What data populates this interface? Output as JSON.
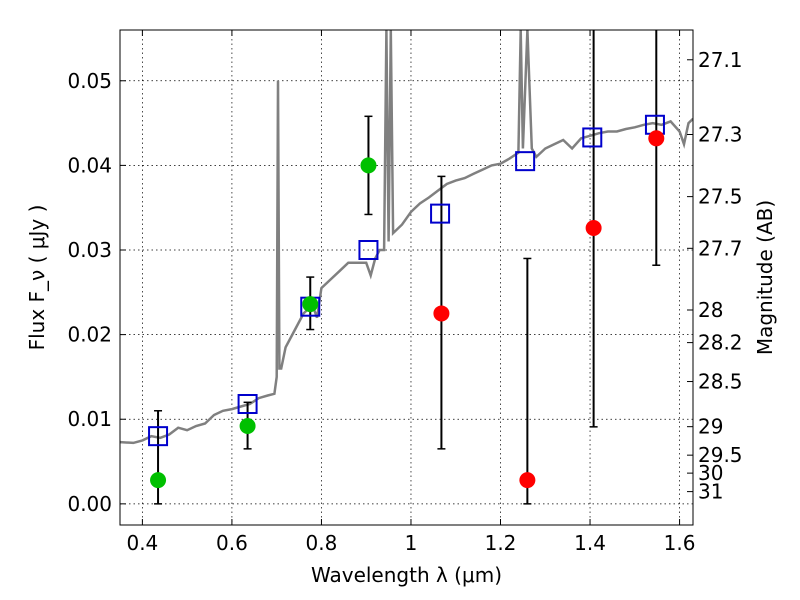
{
  "chart_data": {
    "type": "scatter",
    "xlabel": "Wavelength  λ (μm)",
    "ylabel": "Flux  F_ν  ( μJy )",
    "y2label": "Magnitude (AB)",
    "xlim": [
      0.35,
      1.63
    ],
    "ylim": [
      -0.0025,
      0.056
    ],
    "x_ticks": [
      {
        "v": 0.4,
        "label": "0.4"
      },
      {
        "v": 0.6,
        "label": "0.6"
      },
      {
        "v": 0.8,
        "label": "0.8"
      },
      {
        "v": 1.0,
        "label": "1"
      },
      {
        "v": 1.2,
        "label": "1.2"
      },
      {
        "v": 1.4,
        "label": "1.4"
      },
      {
        "v": 1.6,
        "label": "1.6"
      }
    ],
    "y_ticks": [
      {
        "v": 0.0,
        "label": "0.00"
      },
      {
        "v": 0.01,
        "label": "0.01"
      },
      {
        "v": 0.02,
        "label": "0.02"
      },
      {
        "v": 0.03,
        "label": "0.03"
      },
      {
        "v": 0.04,
        "label": "0.04"
      },
      {
        "v": 0.05,
        "label": "0.05"
      }
    ],
    "mag_ticks": [
      {
        "mag": 27.1,
        "label": "27.1"
      },
      {
        "mag": 27.3,
        "label": "27.3"
      },
      {
        "mag": 27.5,
        "label": "27.5"
      },
      {
        "mag": 27.7,
        "label": "27.7"
      },
      {
        "mag": 28,
        "label": "28"
      },
      {
        "mag": 28.2,
        "label": "28.2"
      },
      {
        "mag": 28.5,
        "label": "28.5"
      },
      {
        "mag": 29,
        "label": "29"
      },
      {
        "mag": 29.5,
        "label": "29.5"
      },
      {
        "mag": 30,
        "label": "30"
      },
      {
        "mag": 31,
        "label": "31"
      }
    ],
    "grid": true,
    "colors": {
      "spectrum": "#808080",
      "model_points": "#0000cc",
      "green_points": "#00c000",
      "red_points": "#ff0000",
      "errorbars": "#000000"
    },
    "spectrum": {
      "x": [
        0.35,
        0.38,
        0.4,
        0.42,
        0.44,
        0.46,
        0.48,
        0.5,
        0.52,
        0.54,
        0.56,
        0.58,
        0.6,
        0.62,
        0.64,
        0.66,
        0.68,
        0.695,
        0.7,
        0.703,
        0.706,
        0.71,
        0.72,
        0.74,
        0.76,
        0.78,
        0.79,
        0.8,
        0.82,
        0.84,
        0.86,
        0.88,
        0.9,
        0.91,
        0.92,
        0.93,
        0.94,
        0.945,
        0.95,
        0.955,
        0.96,
        0.98,
        1.0,
        1.02,
        1.04,
        1.06,
        1.08,
        1.1,
        1.12,
        1.14,
        1.16,
        1.18,
        1.2,
        1.22,
        1.24,
        1.245,
        1.25,
        1.26,
        1.27,
        1.28,
        1.3,
        1.32,
        1.34,
        1.36,
        1.38,
        1.4,
        1.42,
        1.44,
        1.46,
        1.48,
        1.5,
        1.52,
        1.54,
        1.56,
        1.58,
        1.6,
        1.61,
        1.62,
        1.63
      ],
      "y": [
        0.0073,
        0.0072,
        0.0075,
        0.008,
        0.0078,
        0.0082,
        0.009,
        0.0087,
        0.0092,
        0.0095,
        0.0105,
        0.011,
        0.0112,
        0.0115,
        0.0118,
        0.0125,
        0.0128,
        0.013,
        0.015,
        0.05,
        0.016,
        0.016,
        0.0185,
        0.0205,
        0.0225,
        0.0235,
        0.022,
        0.0255,
        0.0265,
        0.0275,
        0.0285,
        0.0285,
        0.0285,
        0.027,
        0.029,
        0.03,
        0.03,
        0.056,
        0.031,
        0.056,
        0.032,
        0.033,
        0.0345,
        0.0355,
        0.0362,
        0.037,
        0.0378,
        0.0382,
        0.0385,
        0.039,
        0.0395,
        0.04,
        0.0402,
        0.0408,
        0.0415,
        0.056,
        0.042,
        0.056,
        0.042,
        0.041,
        0.042,
        0.0425,
        0.043,
        0.042,
        0.0432,
        0.0435,
        0.0438,
        0.044,
        0.044,
        0.0443,
        0.0445,
        0.0448,
        0.045,
        0.0448,
        0.0452,
        0.044,
        0.0425,
        0.045,
        0.0455
      ]
    },
    "model_points": {
      "x": [
        0.435,
        0.635,
        0.775,
        0.905,
        1.065,
        1.255,
        1.405,
        1.545
      ],
      "y": [
        0.008,
        0.0118,
        0.0233,
        0.03,
        0.0343,
        0.0405,
        0.0433,
        0.0448
      ]
    },
    "green_points": {
      "x": [
        0.435,
        0.635,
        0.775,
        0.905
      ],
      "y": [
        0.0028,
        0.0092,
        0.0236,
        0.04
      ],
      "err_low": [
        0.0028,
        0.0027,
        0.003,
        0.0058
      ],
      "err_high": [
        0.0082,
        0.0028,
        0.0032,
        0.0058
      ]
    },
    "red_points": {
      "x": [
        1.068,
        1.26,
        1.408,
        1.548
      ],
      "y": [
        0.0225,
        0.0028,
        0.0326,
        0.0432
      ],
      "err_low": [
        0.016,
        0.0028,
        0.0235,
        0.015
      ],
      "err_high": [
        0.0162,
        0.0262,
        0.0237,
        0.015
      ]
    }
  }
}
